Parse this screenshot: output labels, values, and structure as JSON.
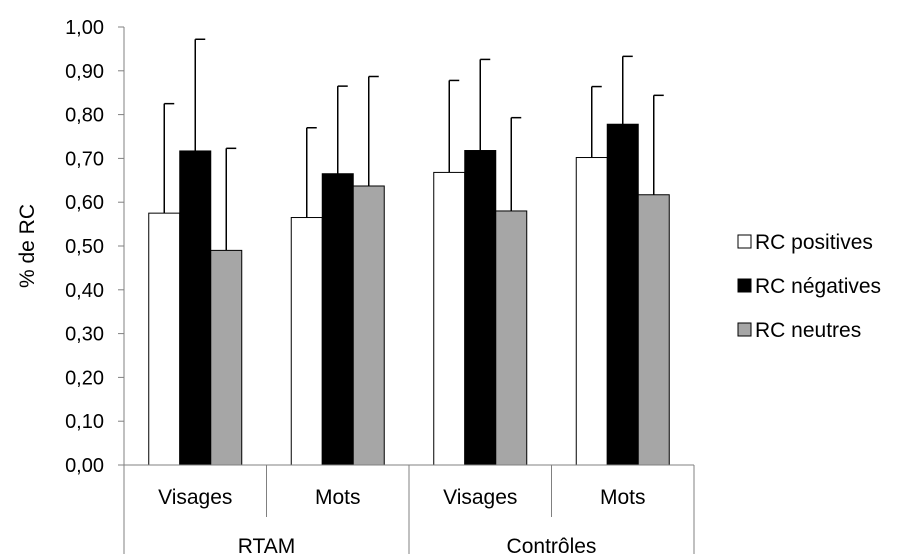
{
  "chart_data": {
    "type": "bar",
    "title": "",
    "ylabel": "% de RC",
    "ylim": [
      0,
      1
    ],
    "yticks": [
      "0,00",
      "0,10",
      "0,20",
      "0,30",
      "0,40",
      "0,50",
      "0,60",
      "0,70",
      "0,80",
      "0,90",
      "1,00"
    ],
    "categories": [
      "Visages",
      "Mots",
      "Visages",
      "Mots"
    ],
    "groups": [
      {
        "label": "RTAM",
        "span": [
          0,
          1
        ]
      },
      {
        "label": "Contrôles",
        "span": [
          2,
          3
        ]
      }
    ],
    "grid": false,
    "legend_position": "right",
    "series": [
      {
        "name": "RC positives",
        "color": "#ffffff",
        "values": [
          0.575,
          0.565,
          0.668,
          0.702
        ],
        "errors": [
          0.25,
          0.205,
          0.21,
          0.162
        ]
      },
      {
        "name": "RC négatives",
        "color": "#000000",
        "values": [
          0.717,
          0.665,
          0.718,
          0.778
        ],
        "errors": [
          0.255,
          0.2,
          0.208,
          0.155
        ]
      },
      {
        "name": "RC neutres",
        "color": "#a6a6a6",
        "values": [
          0.49,
          0.637,
          0.58,
          0.617
        ],
        "errors": [
          0.233,
          0.25,
          0.213,
          0.227
        ]
      }
    ]
  }
}
